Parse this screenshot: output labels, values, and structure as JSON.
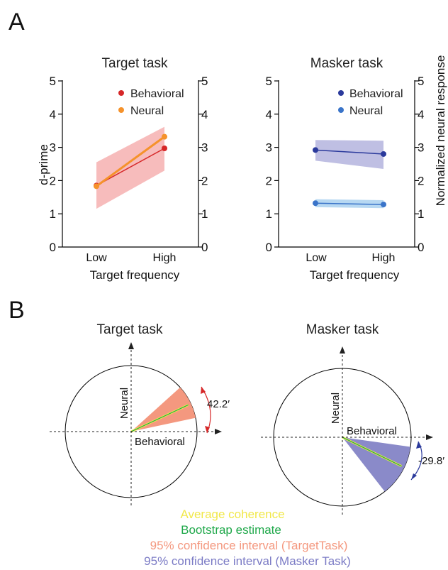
{
  "panel_labels": {
    "a": "A",
    "b": "B"
  },
  "chart_data": [
    {
      "type": "line",
      "title": "Target task",
      "xlabel": "Target frequency",
      "ylabel_left": "d-prime",
      "categories": [
        "Low",
        "High"
      ],
      "ylim": [
        0,
        5
      ],
      "y_ticks": [
        "0",
        "1",
        "2",
        "3",
        "4",
        "5"
      ],
      "legend": "top-right",
      "series": [
        {
          "name": "Behavioral",
          "color": "#d62728",
          "values": [
            1.85,
            2.97
          ],
          "band_low": [
            1.15,
            2.3
          ],
          "band_high": [
            2.55,
            3.62
          ],
          "band_color": "#f4a6a6"
        },
        {
          "name": "Neural",
          "color": "#f5922b",
          "values": [
            1.83,
            3.32
          ]
        }
      ]
    },
    {
      "type": "line",
      "title": "Masker task",
      "xlabel": "Target frequency",
      "ylabel_right": "Normalized neural response",
      "categories": [
        "Low",
        "High"
      ],
      "ylim": [
        0,
        5
      ],
      "y_ticks": [
        "0",
        "1",
        "2",
        "3",
        "4",
        "5"
      ],
      "legend": "top-right",
      "series": [
        {
          "name": "Behavioral",
          "color": "#2b3a9c",
          "values": [
            2.92,
            2.8
          ],
          "band_low": [
            2.6,
            2.35
          ],
          "band_high": [
            3.22,
            3.2
          ],
          "band_color": "#a9a9d9"
        },
        {
          "name": "Neural",
          "color": "#3a74c9",
          "values": [
            1.32,
            1.28
          ],
          "band_low": [
            1.2,
            1.17
          ],
          "band_high": [
            1.44,
            1.41
          ],
          "band_color": "#9fcbee"
        }
      ]
    },
    {
      "type": "polar",
      "title": "Target task",
      "axis_x": "Behavioral",
      "axis_y": "Neural",
      "angle_label": "42.2′",
      "angle_deg": 42.2,
      "mean_angle_deg": 25,
      "ci_deg": [
        12,
        42
      ],
      "ci_color": "#f4987f",
      "arrow_color": "#d62728"
    },
    {
      "type": "polar",
      "title": "Masker task",
      "axis_x": "Behavioral",
      "axis_y": "Neural",
      "angle_label": "-29.8′",
      "angle_deg": -29.8,
      "mean_angle_deg": -26,
      "ci_deg": [
        -8,
        -52
      ],
      "ci_color": "#8a8ac9",
      "arrow_color": "#2b3a9c"
    }
  ],
  "legend_b": [
    {
      "text": "Average coherence",
      "color": "#f1e84a"
    },
    {
      "text": "Bootstrap estimate",
      "color": "#1fa84a"
    },
    {
      "text": "95% confidence interval (TargetTask)",
      "color": "#f4987f"
    },
    {
      "text": "95% confidence interval (Masker Task)",
      "color": "#7b7bc5"
    }
  ]
}
